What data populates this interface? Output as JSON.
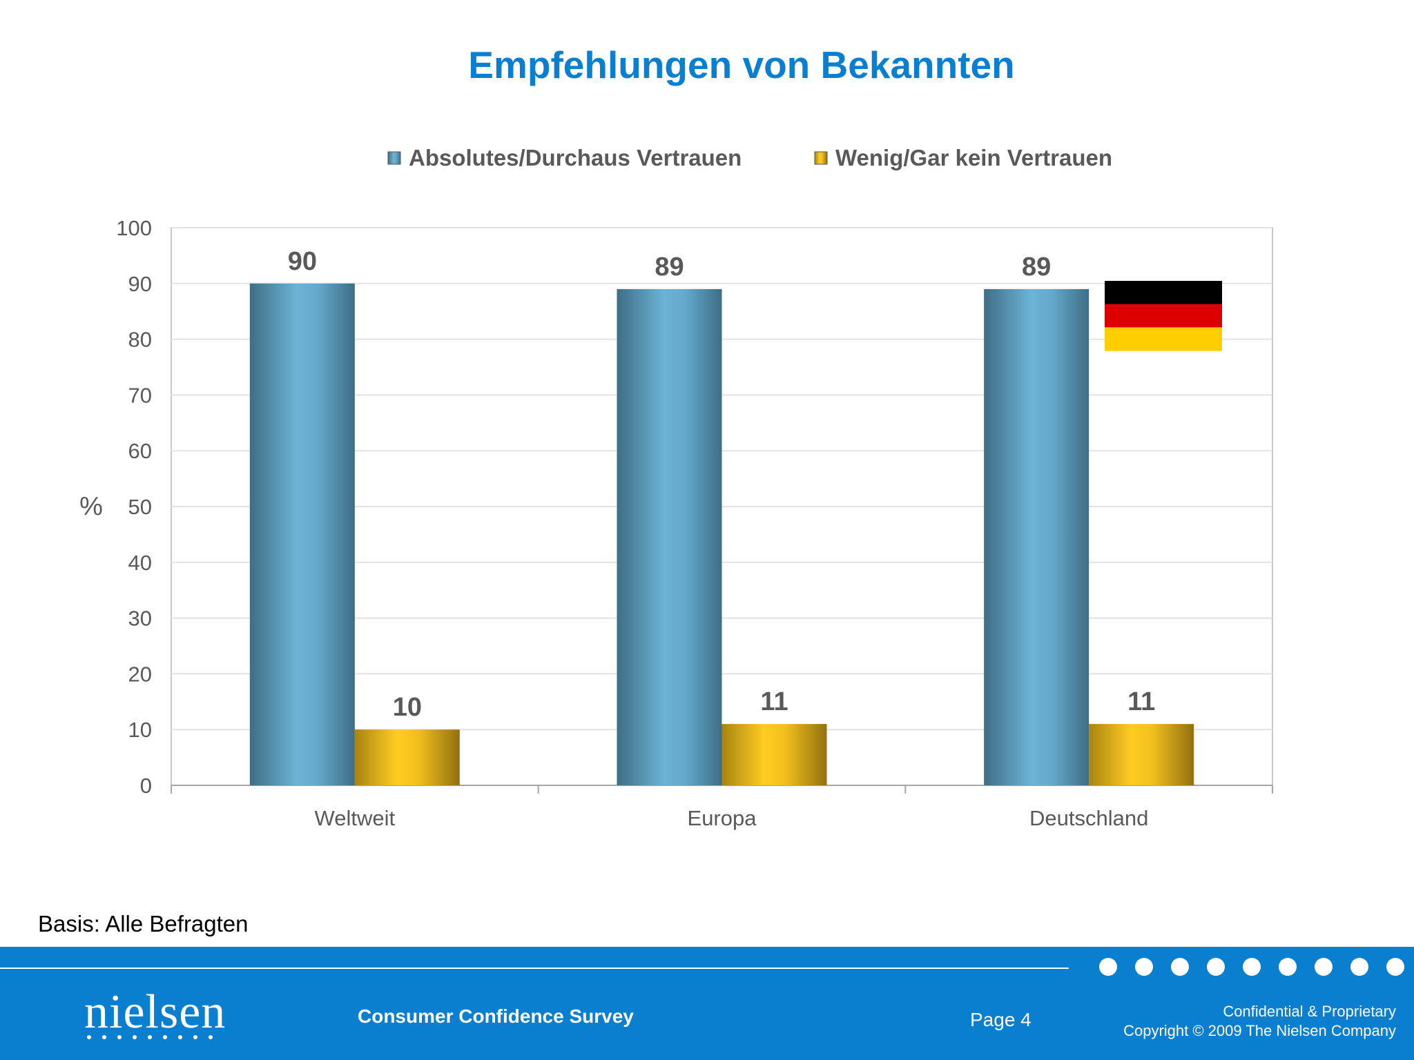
{
  "title": "Empfehlungen von Bekannten",
  "basis": "Basis: Alle Befragten",
  "footer": {
    "logo": "nielsen",
    "survey": "Consumer Confidence Survey",
    "page": "Page 4",
    "confidential": "Confidential & Proprietary",
    "copyright": "Copyright © 2009 The Nielsen Company"
  },
  "colors": {
    "title": "#0a7fd0",
    "footer": "#0a7fd0",
    "series1": "#5fa8c8",
    "series2": "#f0c020"
  },
  "flag": {
    "name": "germany-flag",
    "colors": [
      "#000000",
      "#dd0000",
      "#ffce00"
    ]
  },
  "chart_data": {
    "type": "bar",
    "categories": [
      "Weltweit",
      "Europa",
      "Deutschland"
    ],
    "series": [
      {
        "name": "Absolutes/Durchaus Vertrauen",
        "values": [
          90,
          89,
          89
        ]
      },
      {
        "name": "Wenig/Gar kein Vertrauen",
        "values": [
          10,
          11,
          11
        ]
      }
    ],
    "ylabel": "%",
    "ylim": [
      0,
      100
    ],
    "yticks": [
      0,
      10,
      20,
      30,
      40,
      50,
      60,
      70,
      80,
      90,
      100
    ],
    "grid": true,
    "legend": "top",
    "data_labels": true
  }
}
